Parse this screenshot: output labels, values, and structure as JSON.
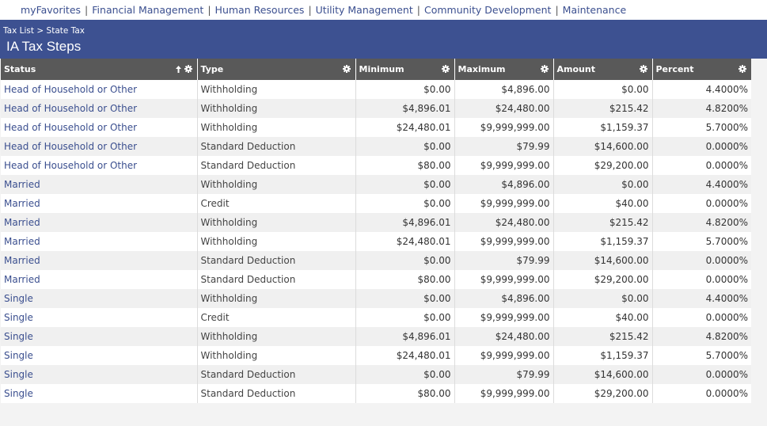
{
  "nav": {
    "items": [
      {
        "label": "myFavorites"
      },
      {
        "label": "Financial Management"
      },
      {
        "label": "Human Resources"
      },
      {
        "label": "Utility Management"
      },
      {
        "label": "Community Development"
      },
      {
        "label": "Maintenance"
      }
    ],
    "separator": "|"
  },
  "breadcrumb": {
    "parent": "Tax List",
    "separator": ">",
    "current": "State Tax"
  },
  "page_title": "IA Tax Steps",
  "table": {
    "columns": [
      {
        "label": "Status",
        "sort": "ascending"
      },
      {
        "label": "Type"
      },
      {
        "label": "Minimum"
      },
      {
        "label": "Maximum"
      },
      {
        "label": "Amount"
      },
      {
        "label": "Percent"
      }
    ],
    "rows": [
      {
        "status": "Head of Household or Other",
        "type": "Withholding",
        "minimum": "$0.00",
        "maximum": "$4,896.00",
        "amount": "$0.00",
        "percent": "4.4000%"
      },
      {
        "status": "Head of Household or Other",
        "type": "Withholding",
        "minimum": "$4,896.01",
        "maximum": "$24,480.00",
        "amount": "$215.42",
        "percent": "4.8200%"
      },
      {
        "status": "Head of Household or Other",
        "type": "Withholding",
        "minimum": "$24,480.01",
        "maximum": "$9,999,999.00",
        "amount": "$1,159.37",
        "percent": "5.7000%"
      },
      {
        "status": "Head of Household or Other",
        "type": "Standard Deduction",
        "minimum": "$0.00",
        "maximum": "$79.99",
        "amount": "$14,600.00",
        "percent": "0.0000%"
      },
      {
        "status": "Head of Household or Other",
        "type": "Standard Deduction",
        "minimum": "$80.00",
        "maximum": "$9,999,999.00",
        "amount": "$29,200.00",
        "percent": "0.0000%"
      },
      {
        "status": "Married",
        "type": "Withholding",
        "minimum": "$0.00",
        "maximum": "$4,896.00",
        "amount": "$0.00",
        "percent": "4.4000%"
      },
      {
        "status": "Married",
        "type": "Credit",
        "minimum": "$0.00",
        "maximum": "$9,999,999.00",
        "amount": "$40.00",
        "percent": "0.0000%"
      },
      {
        "status": "Married",
        "type": "Withholding",
        "minimum": "$4,896.01",
        "maximum": "$24,480.00",
        "amount": "$215.42",
        "percent": "4.8200%"
      },
      {
        "status": "Married",
        "type": "Withholding",
        "minimum": "$24,480.01",
        "maximum": "$9,999,999.00",
        "amount": "$1,159.37",
        "percent": "5.7000%"
      },
      {
        "status": "Married",
        "type": "Standard Deduction",
        "minimum": "$0.00",
        "maximum": "$79.99",
        "amount": "$14,600.00",
        "percent": "0.0000%"
      },
      {
        "status": "Married",
        "type": "Standard Deduction",
        "minimum": "$80.00",
        "maximum": "$9,999,999.00",
        "amount": "$29,200.00",
        "percent": "0.0000%"
      },
      {
        "status": "Single",
        "type": "Withholding",
        "minimum": "$0.00",
        "maximum": "$4,896.00",
        "amount": "$0.00",
        "percent": "4.4000%"
      },
      {
        "status": "Single",
        "type": "Credit",
        "minimum": "$0.00",
        "maximum": "$9,999,999.00",
        "amount": "$40.00",
        "percent": "0.0000%"
      },
      {
        "status": "Single",
        "type": "Withholding",
        "minimum": "$4,896.01",
        "maximum": "$24,480.00",
        "amount": "$215.42",
        "percent": "4.8200%"
      },
      {
        "status": "Single",
        "type": "Withholding",
        "minimum": "$24,480.01",
        "maximum": "$9,999,999.00",
        "amount": "$1,159.37",
        "percent": "5.7000%"
      },
      {
        "status": "Single",
        "type": "Standard Deduction",
        "minimum": "$0.00",
        "maximum": "$79.99",
        "amount": "$14,600.00",
        "percent": "0.0000%"
      },
      {
        "status": "Single",
        "type": "Standard Deduction",
        "minimum": "$80.00",
        "maximum": "$9,999,999.00",
        "amount": "$29,200.00",
        "percent": "0.0000%"
      }
    ]
  },
  "colors": {
    "header_bar": "#3d5191",
    "table_header": "#595959",
    "link": "#3b4f8f",
    "alt_row": "#f0f0f0"
  },
  "icons": {
    "column_settings": "gear-icon",
    "sort_indicator": "sort-up-arrow-icon"
  }
}
